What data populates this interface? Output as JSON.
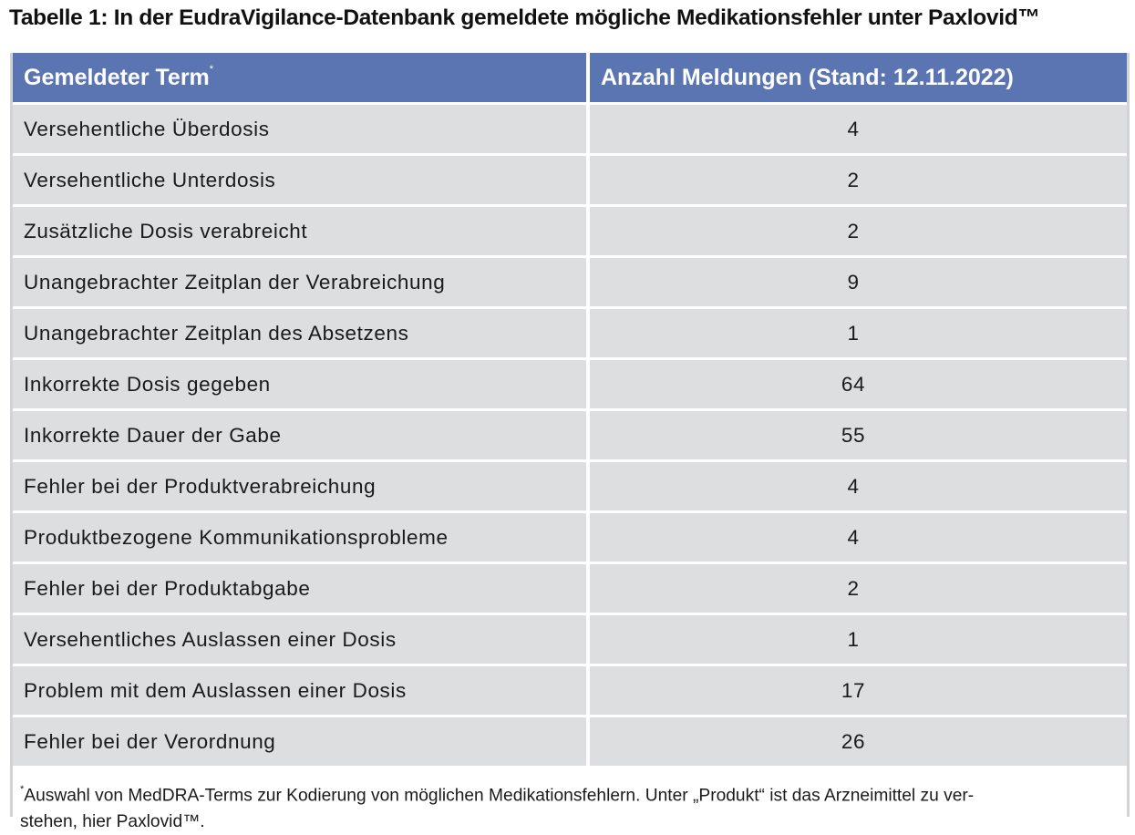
{
  "caption": "Tabelle 1: In der EudraVigilance-Datenbank gemeldete mögliche Medikationsfehler unter Paxlovid™",
  "table": {
    "headers": {
      "term": "Gemeldeter Term",
      "term_mark": "*",
      "count": "Anzahl Meldungen (Stand: 12.11.2022)"
    },
    "rows": [
      {
        "term": "Versehentliche Überdosis",
        "count": "4"
      },
      {
        "term": "Versehentliche Unterdosis",
        "count": "2"
      },
      {
        "term": "Zusätzliche Dosis verabreicht",
        "count": "2"
      },
      {
        "term": "Unangebrachter Zeitplan der Verabreichung",
        "count": "9"
      },
      {
        "term": "Unangebrachter Zeitplan des Absetzens",
        "count": "1"
      },
      {
        "term": "Inkorrekte Dosis gegeben",
        "count": "64"
      },
      {
        "term": "Inkorrekte Dauer der Gabe",
        "count": "55"
      },
      {
        "term": "Fehler bei der Produktverabreichung",
        "count": "4"
      },
      {
        "term": "Produktbezogene Kommunikationsprobleme",
        "count": "4"
      },
      {
        "term": "Fehler bei der Produktabgabe",
        "count": "2"
      },
      {
        "term": "Versehentliches Auslassen einer Dosis",
        "count": "1"
      },
      {
        "term": "Problem mit dem Auslassen einer Dosis",
        "count": "17"
      },
      {
        "term": "Fehler bei der Verordnung",
        "count": "26"
      }
    ]
  },
  "footnote": {
    "mark": "*",
    "line1": "Auswahl von MedDRA-Terms zur Kodierung von möglichen Medikationsfehlern. Unter „Produkt“ ist das Arzneimittel zu ver-",
    "line2": "stehen, hier Paxlovid™."
  },
  "colors": {
    "header_bg": "#5b74b2",
    "row_bg": "#dddee0",
    "frame_bg": "#d2d3d5"
  }
}
